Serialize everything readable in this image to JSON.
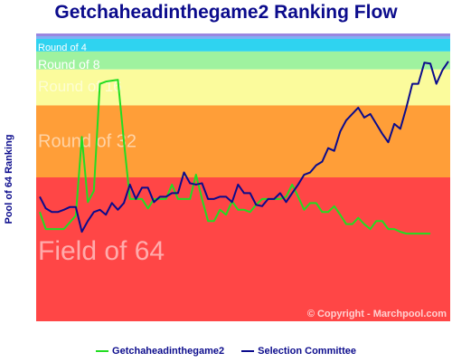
{
  "chart_data": {
    "type": "line",
    "title": "Getchaheadinthegame2 Ranking Flow",
    "ylabel": "Pool of 64 Ranking",
    "xlabel": "",
    "bands": [
      {
        "label": "Round of 4",
        "from": 0,
        "to": 4,
        "color": "#2fd3f0"
      },
      {
        "label": "Round of 8",
        "from": 4,
        "to": 8,
        "color": "#9ff29f"
      },
      {
        "label": "Round of 16",
        "from": 8,
        "to": 16,
        "color": "#fbfb9c"
      },
      {
        "label": "Round of 32",
        "from": 16,
        "to": 32,
        "color": "#ff9e38"
      },
      {
        "label": "Field of 64",
        "from": 32,
        "to": 64,
        "color": "#ff4646"
      }
    ],
    "top_stripe_colors": [
      "#9a86e0",
      "#7fb0f4"
    ],
    "ylim": [
      0,
      64
    ],
    "copyright": "© Copyright - Marchpool.com",
    "series": [
      {
        "name": "Getchaheadinthegame2",
        "color": "#22dd22",
        "values": [
          39.7,
          43.5,
          43.5,
          43.5,
          43.5,
          42.0,
          40.5,
          23.0,
          37.5,
          35.0,
          11.2,
          10.7,
          10.5,
          10.3,
          24.0,
          36.8,
          36.8,
          36.8,
          38.9,
          36.8,
          36.8,
          36.8,
          33.6,
          36.8,
          36.8,
          36.8,
          31.4,
          36.8,
          41.7,
          41.7,
          39.2,
          40.3,
          37.3,
          39.2,
          39.2,
          39.7,
          38.1,
          36.8,
          36.8,
          36.8,
          36.8,
          36.3,
          33.6,
          36.3,
          39.2,
          37.7,
          37.7,
          39.7,
          39.7,
          38.4,
          40.3,
          42.4,
          42.4,
          41.0,
          42.4,
          43.5,
          41.7,
          41.7,
          43.5,
          43.5,
          44.1,
          44.5,
          44.5,
          44.5,
          44.5,
          44.5
        ]
      },
      {
        "name": "Selection Committee",
        "color": "#0b0b8c",
        "values": [
          36.3,
          38.9,
          39.7,
          39.7,
          39.2,
          38.6,
          38.6,
          44.1,
          41.7,
          39.7,
          39.2,
          40.3,
          37.7,
          39.2,
          37.7,
          33.6,
          36.8,
          34.3,
          34.3,
          37.5,
          36.3,
          36.3,
          35.5,
          35.5,
          30.9,
          33.3,
          33.6,
          33.3,
          36.8,
          36.8,
          36.3,
          36.3,
          37.5,
          33.6,
          35.5,
          35.5,
          38.1,
          38.4,
          36.8,
          36.8,
          35.5,
          37.5,
          35.5,
          33.6,
          31.4,
          30.9,
          29.3,
          28.5,
          25.5,
          26.1,
          21.8,
          19.3,
          17.9,
          16.5,
          18.7,
          17.9,
          20.1,
          22.3,
          24.2,
          20.1,
          21.2,
          16.5,
          11.2,
          11.2,
          6.5,
          6.7,
          11.2,
          8.2,
          6.2
        ]
      }
    ]
  }
}
